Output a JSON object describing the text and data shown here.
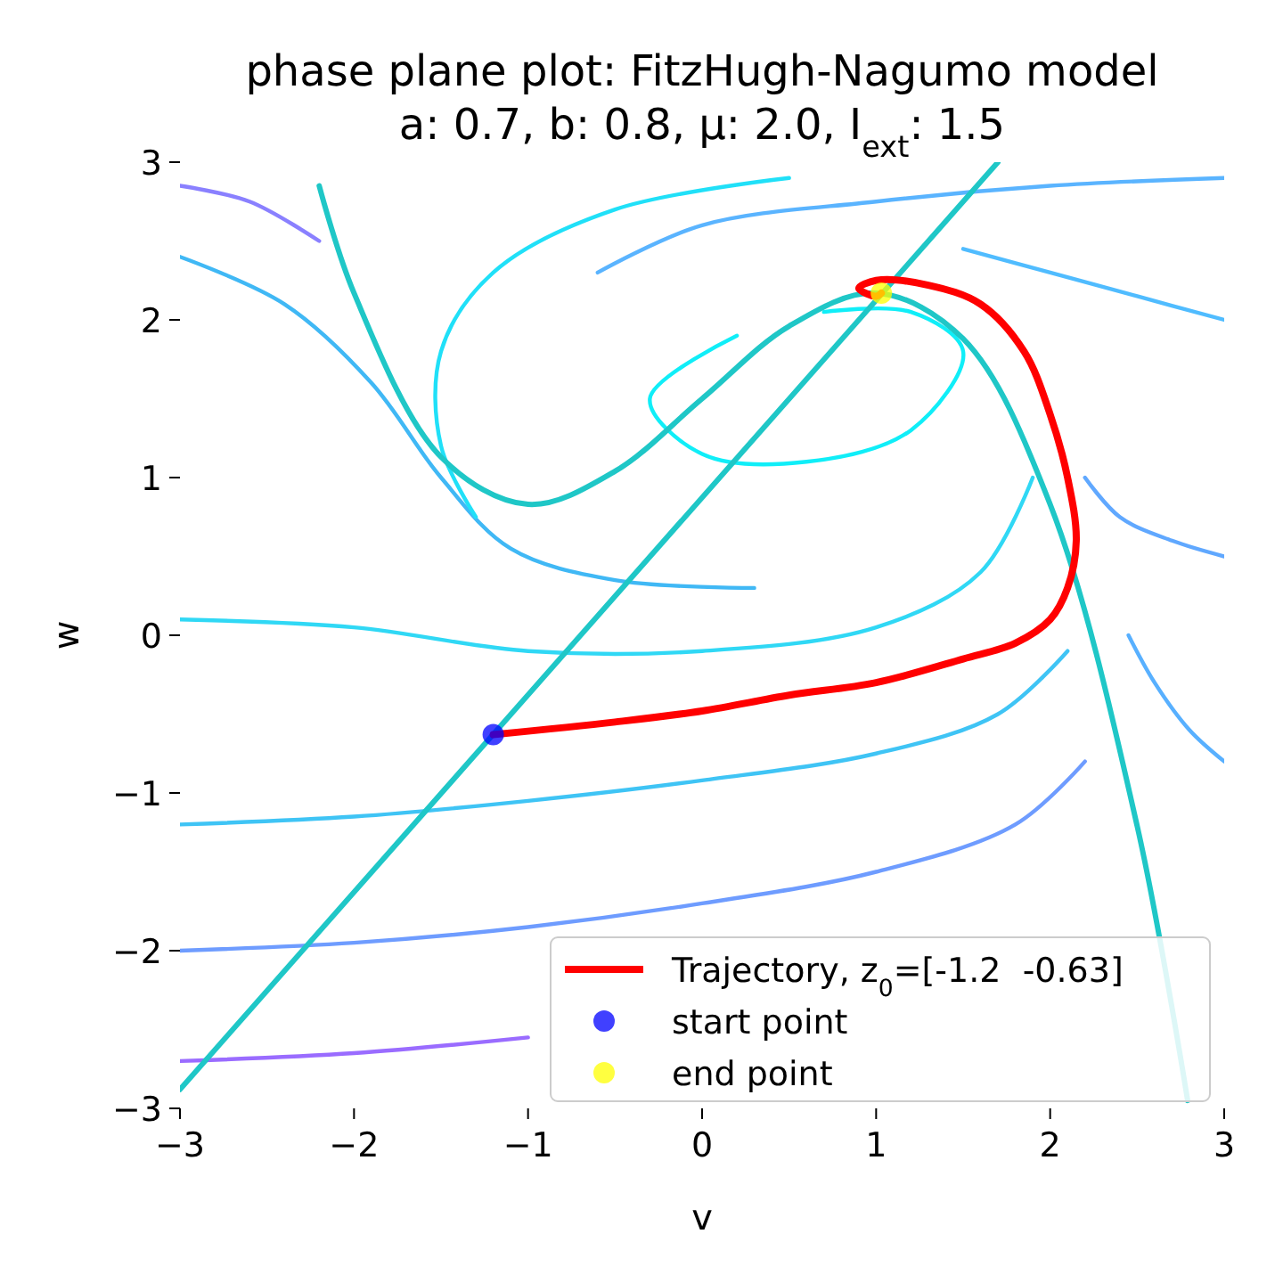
{
  "chart_data": {
    "type": "line",
    "title": "phase plane plot: FitzHugh-Nagumo model",
    "subtitle": "a: 0.7, b: 0.8, μ: 2.0, I$_{ext}$: 1.5",
    "xlabel": "v",
    "ylabel": "w",
    "xlim": [
      -3,
      3
    ],
    "ylim": [
      -3,
      3
    ],
    "xticks": [
      {
        "value": -3,
        "label": "−3"
      },
      {
        "value": -2,
        "label": "−2"
      },
      {
        "value": -1,
        "label": "−1"
      },
      0,
      1,
      2,
      3
    ],
    "yticks": [
      {
        "value": -3,
        "label": "−3"
      },
      {
        "value": -2,
        "label": "−2"
      },
      {
        "value": -1,
        "label": "−1"
      },
      0,
      1,
      2,
      3
    ],
    "grid": false,
    "legend": "bottom right",
    "series": [
      {
        "color": "#9a6cff",
        "x": [
          -3,
          -2,
          -1
        ],
        "values": [
          -2.7,
          -2.65,
          -2.55
        ]
      },
      {
        "color": "#6e9cff",
        "x": [
          -3,
          -2,
          -1,
          0,
          1,
          1.8,
          2.2
        ],
        "values": [
          -2.0,
          -1.95,
          -1.85,
          -1.7,
          -1.5,
          -1.2,
          -0.8
        ]
      },
      {
        "color": "#3fc4f5",
        "x": [
          -3,
          -2,
          -1,
          0,
          1,
          1.7,
          2.1
        ],
        "values": [
          -1.2,
          -1.15,
          -1.05,
          -0.92,
          -0.75,
          -0.5,
          -0.1
        ]
      },
      {
        "color": "#30d8f5",
        "x": [
          -3,
          -2,
          -1,
          0,
          1,
          1.6,
          1.9
        ],
        "values": [
          0.1,
          0.05,
          -0.1,
          -0.1,
          0.05,
          0.4,
          1.0
        ]
      },
      {
        "color": "#10eef8",
        "x": [
          0.2,
          -0.3,
          0,
          0.6,
          1.2,
          1.5,
          1.2,
          0.7
        ],
        "values": [
          1.9,
          1.5,
          1.15,
          1.1,
          1.3,
          1.8,
          2.05,
          2.05
        ]
      },
      {
        "color": "#40b8f5",
        "x": [
          -3,
          -2.4,
          -1.9,
          -1.5,
          -1.1,
          -0.5,
          0.3
        ],
        "values": [
          2.4,
          2.1,
          1.6,
          1.0,
          0.55,
          0.35,
          0.3
        ]
      },
      {
        "color": "#20e0f8",
        "x": [
          0.5,
          -0.5,
          -1.2,
          -1.5,
          -1.5,
          -1.3
        ],
        "values": [
          2.9,
          2.7,
          2.3,
          1.8,
          1.2,
          0.75
        ]
      },
      {
        "color": "#5ab4ff",
        "x": [
          3,
          2,
          1,
          0,
          -0.6
        ],
        "values": [
          2.9,
          2.85,
          2.75,
          2.6,
          2.3
        ]
      },
      {
        "color": "#50bcff",
        "x": [
          3,
          2.5,
          2,
          1.5
        ],
        "values": [
          2.0,
          2.15,
          2.3,
          2.45
        ]
      },
      {
        "color": "#60a8ff",
        "x": [
          3,
          2.7,
          2.4,
          2.2
        ],
        "values": [
          0.5,
          0.6,
          0.75,
          1.0
        ]
      },
      {
        "color": "#58b0ff",
        "x": [
          3,
          2.8,
          2.6,
          2.45
        ],
        "values": [
          -0.8,
          -0.6,
          -0.3,
          0.0
        ]
      },
      {
        "color": "#8a80ff",
        "x": [
          -3,
          -2.6,
          -2.2
        ],
        "values": [
          2.85,
          2.75,
          2.5
        ]
      },
      {
        "color": "#1fc7c7",
        "x": [
          -2.2,
          -2,
          -1.5,
          -1,
          -0.5,
          0,
          0.5,
          1,
          1.5,
          2,
          2.5,
          2.79
        ],
        "values": [
          2.85,
          2.17,
          1.13,
          0.83,
          1.04,
          1.5,
          1.96,
          2.17,
          1.88,
          0.83,
          -1.21,
          -2.95
        ]
      },
      {
        "color": "#1fc7c7",
        "x": [
          -3,
          1.7
        ],
        "values": [
          -2.88,
          3.0
        ]
      },
      {
        "name": "Trajectory, z$_{0}$=[-1.2  -0.63]",
        "color": "#ff0000",
        "x": [
          -1.2,
          -0.5,
          0,
          0.5,
          1,
          1.5,
          1.8,
          2.0,
          2.1,
          2.15,
          2.1,
          2.0,
          1.85,
          1.6,
          1.3,
          1.0,
          0.9,
          1.0,
          1.03
        ],
        "values": [
          -0.63,
          -0.55,
          -0.48,
          -0.38,
          -0.3,
          -0.15,
          -0.05,
          0.1,
          0.3,
          0.6,
          1.0,
          1.4,
          1.8,
          2.1,
          2.22,
          2.25,
          2.2,
          2.15,
          2.17
        ]
      },
      {
        "name": "start point",
        "type": "scatter",
        "color": "#0000ff",
        "x": [
          -1.2
        ],
        "values": [
          -0.63
        ]
      },
      {
        "name": "end point",
        "type": "scatter",
        "color": "#ffff00",
        "x": [
          1.03
        ],
        "values": [
          2.17
        ]
      }
    ]
  }
}
